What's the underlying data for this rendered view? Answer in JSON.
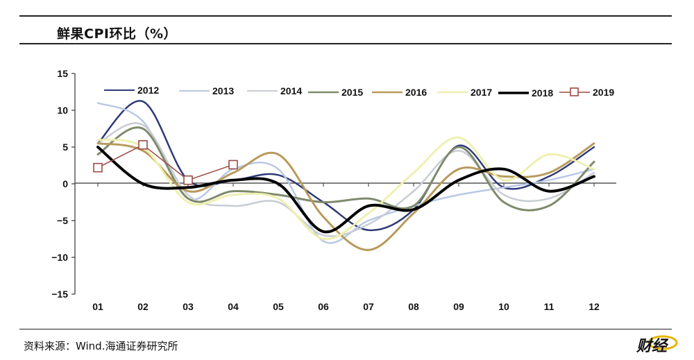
{
  "header": {
    "title": "鲜果CPI环比（%）"
  },
  "footer": {
    "source": "资料来源：Wind.海通证券研究所",
    "logo_text": "财经"
  },
  "chart_data": {
    "type": "line",
    "title": "鲜果CPI环比（%）",
    "xlabel": "",
    "ylabel": "",
    "categories": [
      "01",
      "02",
      "03",
      "04",
      "05",
      "06",
      "07",
      "08",
      "09",
      "10",
      "11",
      "12"
    ],
    "ylim": [
      -15,
      15
    ],
    "yticks": [
      15,
      10,
      5,
      0,
      -5,
      -10,
      -15
    ],
    "ytick_labels": [
      "15",
      "10",
      "5",
      "0",
      "−5",
      "−10",
      "−15"
    ],
    "grid": false,
    "legend": "top",
    "series": [
      {
        "name": "2012",
        "color": "#2e3a78",
        "width": 2.5,
        "marker": "none",
        "values": [
          5.5,
          11.2,
          0.5,
          0.5,
          1.2,
          -2.5,
          -6.3,
          -3.5,
          5.2,
          -0.5,
          1.0,
          5.0
        ]
      },
      {
        "name": "2013",
        "color": "#b9c8e6",
        "width": 2.5,
        "marker": "none",
        "values": [
          11.0,
          8.5,
          -2.0,
          2.0,
          2.0,
          -7.8,
          -5.0,
          -3.0,
          -1.5,
          -0.5,
          0.5,
          2.0
        ]
      },
      {
        "name": "2014",
        "color": "#c8ccd4",
        "width": 2.5,
        "marker": "none",
        "values": [
          5.5,
          8.0,
          -1.5,
          -3.0,
          -2.5,
          -7.0,
          -5.5,
          -1.0,
          4.5,
          -1.5,
          -2.0,
          1.5
        ]
      },
      {
        "name": "2015",
        "color": "#7f8a6c",
        "width": 3,
        "marker": "none",
        "values": [
          4.0,
          7.5,
          -2.0,
          -1.0,
          -1.5,
          -2.5,
          -2.0,
          -3.0,
          5.0,
          -2.5,
          -3.0,
          3.0
        ]
      },
      {
        "name": "2016",
        "color": "#b89a5a",
        "width": 3,
        "marker": "none",
        "values": [
          5.5,
          4.5,
          -1.0,
          1.5,
          4.0,
          -4.5,
          -9.0,
          -4.0,
          2.0,
          1.0,
          1.5,
          5.5
        ]
      },
      {
        "name": "2017",
        "color": "#eef0b0",
        "width": 3,
        "marker": "none",
        "values": [
          6.0,
          5.0,
          -2.5,
          -1.5,
          -2.0,
          -7.5,
          -4.0,
          1.5,
          6.3,
          0.5,
          4.0,
          2.0
        ]
      },
      {
        "name": "2018",
        "color": "#000000",
        "width": 4,
        "marker": "none",
        "values": [
          5.0,
          0.0,
          -0.5,
          0.5,
          0.0,
          -6.5,
          -3.0,
          -3.5,
          0.5,
          2.0,
          -1.0,
          1.0
        ]
      },
      {
        "name": "2019",
        "color": "#9b4a43",
        "width": 1.5,
        "marker": "square",
        "values": [
          2.2,
          5.3,
          0.5,
          2.6,
          null,
          null,
          null,
          null,
          null,
          null,
          null,
          null
        ]
      }
    ]
  }
}
